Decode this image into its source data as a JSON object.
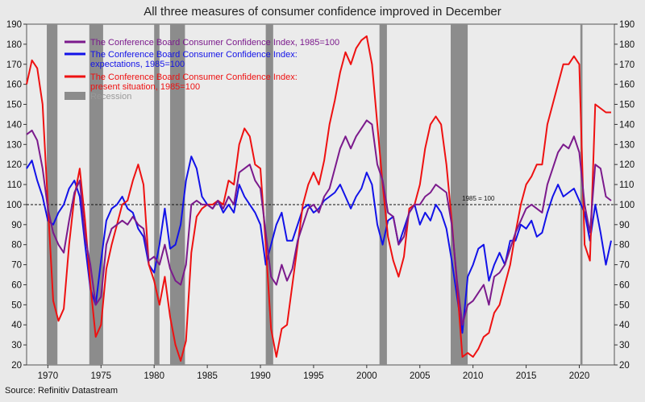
{
  "chart_data": {
    "type": "line",
    "title": "All three measures of consumer confidence improved in December",
    "source": "Source: Refinitiv Datastream",
    "x_range": [
      1968,
      1968,
      2023.3
    ],
    "ylim": [
      20,
      190
    ],
    "x_ticks": [
      "1970",
      "1975",
      "1980",
      "1985",
      "1990",
      "1995",
      "2000",
      "2005",
      "2010",
      "2015",
      "2020"
    ],
    "y_ticks_left": [
      "20",
      "30",
      "40",
      "50",
      "60",
      "70",
      "80",
      "90",
      "100",
      "110",
      "120",
      "130",
      "140",
      "150",
      "160",
      "170",
      "180",
      "190"
    ],
    "y_ticks_right": [
      "20",
      "30",
      "40",
      "50",
      "60",
      "70",
      "80",
      "90",
      "100",
      "110",
      "120",
      "130",
      "140",
      "150",
      "160",
      "170",
      "180",
      "190"
    ],
    "reference_line": {
      "value": 100,
      "label": "1985 = 100",
      "style": "dashed"
    },
    "recessions": [
      [
        1969.9,
        1970.9
      ],
      [
        1973.9,
        1975.2
      ],
      [
        1980.0,
        1980.5
      ],
      [
        1981.5,
        1982.9
      ],
      [
        1990.5,
        1991.2
      ],
      [
        2001.2,
        2001.9
      ],
      [
        2007.9,
        2009.5
      ],
      [
        2020.1,
        2020.3
      ]
    ],
    "legend": {
      "placement": "top-left",
      "entries": [
        {
          "label": "The Conference Board Consumer Confidence Index, 1985=100",
          "color": "#7b1a8c"
        },
        {
          "label": "The Conference Board Consumer Confidence Index: expectations, 1985=100",
          "color": "#1212e8"
        },
        {
          "label": "The Conference Board Consumer Confidence Index: present situation, 1985=100",
          "color": "#ee1111"
        },
        {
          "label": "Recession",
          "color": "#8c8c8c"
        }
      ]
    },
    "series": [
      {
        "name": "The Conference Board Consumer Confidence Index, 1985=100",
        "color": "#7b1a8c",
        "x": [
          1968.0,
          1968.5,
          1969.0,
          1969.5,
          1970.0,
          1970.5,
          1971.0,
          1971.5,
          1972.0,
          1972.5,
          1973.0,
          1973.5,
          1974.0,
          1974.5,
          1975.0,
          1975.5,
          1976.0,
          1976.5,
          1977.0,
          1977.5,
          1978.0,
          1978.5,
          1979.0,
          1979.5,
          1980.0,
          1980.5,
          1981.0,
          1981.5,
          1982.0,
          1982.5,
          1983.0,
          1983.5,
          1984.0,
          1984.5,
          1985.0,
          1985.5,
          1986.0,
          1986.5,
          1987.0,
          1987.5,
          1988.0,
          1988.5,
          1989.0,
          1989.5,
          1990.0,
          1990.5,
          1991.0,
          1991.5,
          1992.0,
          1992.5,
          1993.0,
          1993.5,
          1994.0,
          1994.5,
          1995.0,
          1995.5,
          1996.0,
          1996.5,
          1997.0,
          1997.5,
          1998.0,
          1998.5,
          1999.0,
          1999.5,
          2000.0,
          2000.5,
          2001.0,
          2001.5,
          2002.0,
          2002.5,
          2003.0,
          2003.5,
          2004.0,
          2004.5,
          2005.0,
          2005.5,
          2006.0,
          2006.5,
          2007.0,
          2007.5,
          2008.0,
          2008.5,
          2009.0,
          2009.5,
          2010.0,
          2010.5,
          2011.0,
          2011.5,
          2012.0,
          2012.5,
          2013.0,
          2013.5,
          2014.0,
          2014.5,
          2015.0,
          2015.5,
          2016.0,
          2016.5,
          2017.0,
          2017.5,
          2018.0,
          2018.5,
          2019.0,
          2019.5,
          2020.0,
          2020.5,
          2021.0,
          2021.5,
          2022.0,
          2022.5,
          2023.0
        ],
        "y": [
          135,
          137,
          132,
          118,
          98,
          86,
          80,
          76,
          92,
          106,
          112,
          84,
          70,
          50,
          54,
          80,
          88,
          90,
          92,
          90,
          94,
          90,
          88,
          72,
          74,
          70,
          80,
          68,
          62,
          60,
          70,
          100,
          102,
          100,
          100,
          98,
          102,
          98,
          104,
          100,
          116,
          118,
          120,
          112,
          108,
          86,
          64,
          60,
          70,
          62,
          68,
          82,
          90,
          98,
          100,
          96,
          104,
          108,
          118,
          128,
          134,
          128,
          134,
          138,
          142,
          140,
          120,
          112,
          96,
          94,
          80,
          84,
          96,
          100,
          100,
          104,
          106,
          110,
          108,
          106,
          90,
          62,
          40,
          50,
          52,
          56,
          60,
          50,
          64,
          66,
          70,
          78,
          86,
          92,
          98,
          100,
          98,
          96,
          110,
          118,
          126,
          130,
          128,
          134,
          126,
          100,
          86,
          120,
          118,
          104,
          102
        ],
        "values": [
          135,
          137,
          132,
          118,
          98,
          86,
          80,
          76,
          92,
          106,
          112,
          84,
          70,
          50,
          54,
          80,
          88,
          90,
          92,
          90,
          94,
          90,
          88,
          72,
          74,
          70,
          80,
          68,
          62,
          60,
          70,
          100,
          102,
          100,
          100,
          98,
          102,
          98,
          104,
          100,
          116,
          118,
          120,
          112,
          108,
          86,
          64,
          60,
          70,
          62,
          68,
          82,
          90,
          98,
          100,
          96,
          104,
          108,
          118,
          128,
          134,
          128,
          134,
          138,
          142,
          140,
          120,
          112,
          96,
          94,
          80,
          84,
          96,
          100,
          100,
          104,
          106,
          110,
          108,
          106,
          90,
          62,
          40,
          50,
          52,
          56,
          60,
          50,
          64,
          66,
          70,
          78,
          86,
          92,
          98,
          100,
          98,
          96,
          110,
          118,
          126,
          130,
          128,
          134,
          126,
          100,
          86,
          120,
          118,
          104,
          102
        ]
      },
      {
        "name": "The Conference Board Consumer Confidence Index: expectations, 1985=100",
        "color": "#1212e8",
        "x": [
          1968.0,
          1968.5,
          1969.0,
          1969.5,
          1970.0,
          1970.5,
          1971.0,
          1971.5,
          1972.0,
          1972.5,
          1973.0,
          1973.5,
          1974.0,
          1974.5,
          1975.0,
          1975.5,
          1976.0,
          1976.5,
          1977.0,
          1977.5,
          1978.0,
          1978.5,
          1979.0,
          1979.5,
          1980.0,
          1980.5,
          1981.0,
          1981.5,
          1982.0,
          1982.5,
          1983.0,
          1983.5,
          1984.0,
          1984.5,
          1985.0,
          1985.5,
          1986.0,
          1986.5,
          1987.0,
          1987.5,
          1988.0,
          1988.5,
          1989.0,
          1989.5,
          1990.0,
          1990.5,
          1991.0,
          1991.5,
          1992.0,
          1992.5,
          1993.0,
          1993.5,
          1994.0,
          1994.5,
          1995.0,
          1995.5,
          1996.0,
          1996.5,
          1997.0,
          1997.5,
          1998.0,
          1998.5,
          1999.0,
          1999.5,
          2000.0,
          2000.5,
          2001.0,
          2001.5,
          2002.0,
          2002.5,
          2003.0,
          2003.5,
          2004.0,
          2004.5,
          2005.0,
          2005.5,
          2006.0,
          2006.5,
          2007.0,
          2007.5,
          2008.0,
          2008.5,
          2009.0,
          2009.5,
          2010.0,
          2010.5,
          2011.0,
          2011.5,
          2012.0,
          2012.5,
          2013.0,
          2013.5,
          2014.0,
          2014.5,
          2015.0,
          2015.5,
          2016.0,
          2016.5,
          2017.0,
          2017.5,
          2018.0,
          2018.5,
          2019.0,
          2019.5,
          2020.0,
          2020.5,
          2021.0,
          2021.5,
          2022.0,
          2022.5,
          2023.0
        ],
        "y": [
          118,
          122,
          112,
          104,
          92,
          90,
          96,
          100,
          108,
          112,
          104,
          80,
          58,
          50,
          72,
          92,
          98,
          100,
          104,
          98,
          96,
          88,
          84,
          70,
          66,
          80,
          98,
          78,
          80,
          90,
          112,
          124,
          118,
          104,
          100,
          98,
          102,
          96,
          100,
          96,
          110,
          104,
          100,
          96,
          90,
          70,
          80,
          90,
          96,
          82,
          82,
          90,
          98,
          100,
          96,
          98,
          102,
          104,
          106,
          110,
          104,
          98,
          104,
          108,
          116,
          110,
          90,
          80,
          92,
          94,
          80,
          88,
          96,
          100,
          90,
          96,
          92,
          100,
          96,
          88,
          72,
          54,
          36,
          64,
          70,
          78,
          80,
          62,
          70,
          76,
          70,
          82,
          82,
          90,
          88,
          92,
          84,
          86,
          96,
          104,
          110,
          104,
          106,
          108,
          102,
          96,
          82,
          100,
          86,
          70,
          82
        ],
        "values": [
          118,
          122,
          112,
          104,
          92,
          90,
          96,
          100,
          108,
          112,
          104,
          80,
          58,
          50,
          72,
          92,
          98,
          100,
          104,
          98,
          96,
          88,
          84,
          70,
          66,
          80,
          98,
          78,
          80,
          90,
          112,
          124,
          118,
          104,
          100,
          98,
          102,
          96,
          100,
          96,
          110,
          104,
          100,
          96,
          90,
          70,
          80,
          90,
          96,
          82,
          82,
          90,
          98,
          100,
          96,
          98,
          102,
          104,
          106,
          110,
          104,
          98,
          104,
          108,
          116,
          110,
          90,
          80,
          92,
          94,
          80,
          88,
          96,
          100,
          90,
          96,
          92,
          100,
          96,
          88,
          72,
          54,
          36,
          64,
          70,
          78,
          80,
          62,
          70,
          76,
          70,
          82,
          82,
          90,
          88,
          92,
          84,
          86,
          96,
          104,
          110,
          104,
          106,
          108,
          102,
          96,
          82,
          100,
          86,
          70,
          82
        ]
      },
      {
        "name": "The Conference Board Consumer Confidence Index: present situation, 1985=100",
        "color": "#ee1111",
        "x": [
          1968.0,
          1968.5,
          1969.0,
          1969.5,
          1970.0,
          1970.5,
          1971.0,
          1971.5,
          1972.0,
          1972.5,
          1973.0,
          1973.5,
          1974.0,
          1974.5,
          1975.0,
          1975.5,
          1976.0,
          1976.5,
          1977.0,
          1977.5,
          1978.0,
          1978.5,
          1979.0,
          1979.5,
          1980.0,
          1980.5,
          1981.0,
          1981.5,
          1982.0,
          1982.5,
          1983.0,
          1983.5,
          1984.0,
          1984.5,
          1985.0,
          1985.5,
          1986.0,
          1986.5,
          1987.0,
          1987.5,
          1988.0,
          1988.5,
          1989.0,
          1989.5,
          1990.0,
          1990.5,
          1991.0,
          1991.5,
          1992.0,
          1992.5,
          1993.0,
          1993.5,
          1994.0,
          1994.5,
          1995.0,
          1995.5,
          1996.0,
          1996.5,
          1997.0,
          1997.5,
          1998.0,
          1998.5,
          1999.0,
          1999.5,
          2000.0,
          2000.5,
          2001.0,
          2001.5,
          2002.0,
          2002.5,
          2003.0,
          2003.5,
          2004.0,
          2004.5,
          2005.0,
          2005.5,
          2006.0,
          2006.5,
          2007.0,
          2007.5,
          2008.0,
          2008.5,
          2009.0,
          2009.5,
          2010.0,
          2010.5,
          2011.0,
          2011.5,
          2012.0,
          2012.5,
          2013.0,
          2013.5,
          2014.0,
          2014.5,
          2015.0,
          2015.5,
          2016.0,
          2016.5,
          2017.0,
          2017.5,
          2018.0,
          2018.5,
          2019.0,
          2019.5,
          2020.0,
          2020.5,
          2021.0,
          2021.5,
          2022.0,
          2022.5,
          2023.0
        ],
        "y": [
          160,
          172,
          168,
          150,
          100,
          52,
          42,
          48,
          80,
          104,
          118,
          92,
          60,
          34,
          40,
          68,
          80,
          90,
          100,
          102,
          112,
          120,
          110,
          70,
          62,
          50,
          64,
          44,
          30,
          22,
          32,
          76,
          94,
          98,
          100,
          100,
          102,
          100,
          112,
          110,
          130,
          138,
          134,
          120,
          118,
          80,
          38,
          24,
          38,
          40,
          60,
          80,
          100,
          110,
          116,
          110,
          122,
          140,
          152,
          166,
          176,
          170,
          178,
          182,
          184,
          170,
          140,
          110,
          84,
          72,
          64,
          74,
          98,
          100,
          110,
          128,
          140,
          144,
          140,
          120,
          92,
          60,
          24,
          26,
          24,
          28,
          34,
          36,
          46,
          50,
          60,
          70,
          86,
          100,
          110,
          114,
          120,
          120,
          140,
          150,
          160,
          170,
          170,
          174,
          170,
          80,
          72,
          150,
          148,
          146,
          146
        ],
        "values": [
          160,
          172,
          168,
          150,
          100,
          52,
          42,
          48,
          80,
          104,
          118,
          92,
          60,
          34,
          40,
          68,
          80,
          90,
          100,
          102,
          112,
          120,
          110,
          70,
          62,
          50,
          64,
          44,
          30,
          22,
          32,
          76,
          94,
          98,
          100,
          100,
          102,
          100,
          112,
          110,
          130,
          138,
          134,
          120,
          118,
          80,
          38,
          24,
          38,
          40,
          60,
          80,
          100,
          110,
          116,
          110,
          122,
          140,
          152,
          166,
          176,
          170,
          178,
          182,
          184,
          170,
          140,
          110,
          84,
          72,
          64,
          74,
          98,
          100,
          110,
          128,
          140,
          144,
          140,
          120,
          92,
          60,
          24,
          26,
          24,
          28,
          34,
          36,
          46,
          50,
          60,
          70,
          86,
          100,
          110,
          114,
          120,
          120,
          140,
          150,
          160,
          170,
          170,
          174,
          170,
          80,
          72,
          150,
          148,
          146,
          146
        ]
      }
    ]
  }
}
